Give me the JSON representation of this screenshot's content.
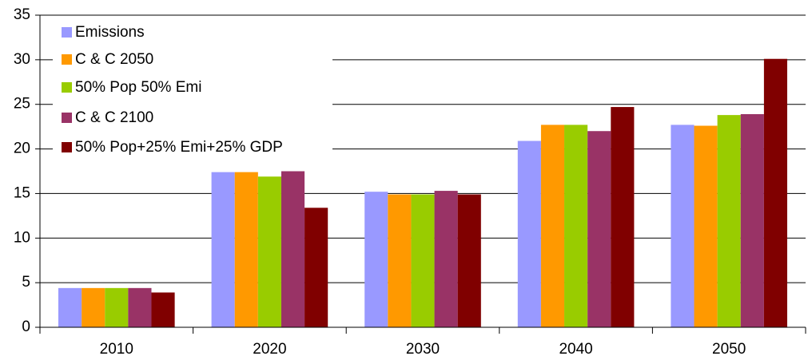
{
  "chart_data": {
    "type": "bar",
    "categories": [
      "2010",
      "2020",
      "2030",
      "2040",
      "2050"
    ],
    "series": [
      {
        "name": "Emissions",
        "color": "#9999ff",
        "values": [
          4.4,
          17.4,
          15.2,
          20.9,
          22.7
        ]
      },
      {
        "name": "C & C 2050",
        "color": "#ff9900",
        "values": [
          4.4,
          17.4,
          14.9,
          22.7,
          22.6
        ]
      },
      {
        "name": "50% Pop 50% Emi",
        "color": "#99cc00",
        "values": [
          4.4,
          16.9,
          14.9,
          22.7,
          23.8
        ]
      },
      {
        "name": "C & C 2100",
        "color": "#993366",
        "values": [
          4.4,
          17.5,
          15.3,
          22.0,
          23.9
        ]
      },
      {
        "name": "50% Pop+25% Emi+25% GDP",
        "color": "#800000",
        "values": [
          3.9,
          13.4,
          14.9,
          24.7,
          30.1
        ]
      }
    ],
    "ylim": [
      0,
      35
    ],
    "yticks": [
      0,
      5,
      10,
      15,
      20,
      25,
      30,
      35
    ],
    "grid": true,
    "legend": "top-left"
  }
}
